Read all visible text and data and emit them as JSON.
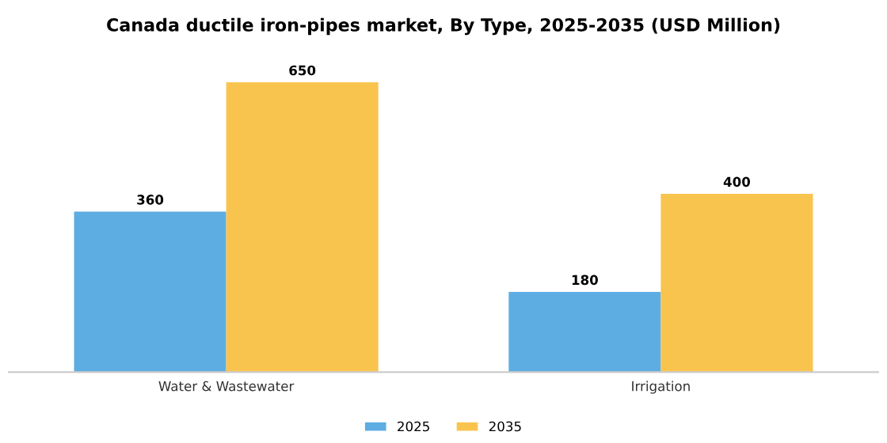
{
  "chart_data": {
    "type": "bar",
    "title": "Canada ductile iron-pipes market, By Type, 2025-2035 (USD Million)",
    "categories": [
      "Water & Wastewater",
      "Irrigation"
    ],
    "series": [
      {
        "name": "2025",
        "color": "#5dade2",
        "values": [
          360,
          180
        ]
      },
      {
        "name": "2035",
        "color": "#f9c44e",
        "values": [
          650,
          400
        ]
      }
    ],
    "data_labels": true,
    "legend": "bottom",
    "grid": false
  }
}
